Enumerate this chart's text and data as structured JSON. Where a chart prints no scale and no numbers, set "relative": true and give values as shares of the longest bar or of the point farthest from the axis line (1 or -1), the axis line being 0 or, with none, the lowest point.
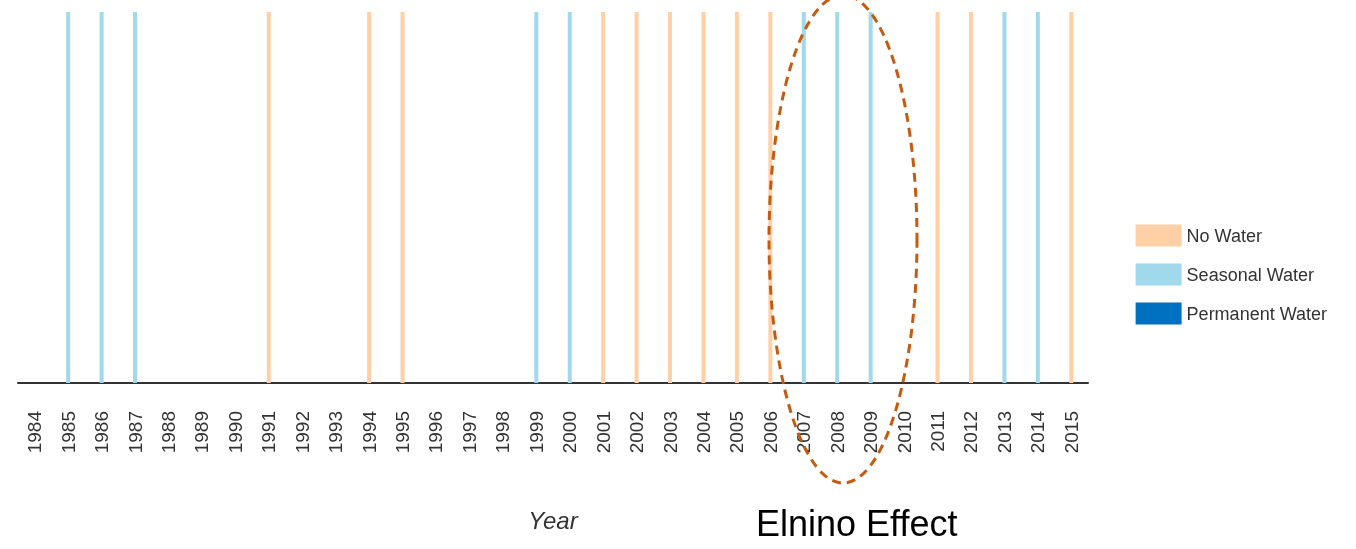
{
  "chart_data": {
    "type": "bar",
    "stacked": true,
    "relative": true,
    "xlabel": "Year",
    "legend": "right",
    "grid": false,
    "categories": [
      "1984",
      "1985",
      "1986",
      "1987",
      "1988",
      "1989",
      "1990",
      "1991",
      "1992",
      "1993",
      "1994",
      "1995",
      "1996",
      "1997",
      "1998",
      "1999",
      "2000",
      "2001",
      "2002",
      "2003",
      "2004",
      "2005",
      "2006",
      "2007",
      "2008",
      "2009",
      "2010",
      "2011",
      "2012",
      "2013",
      "2014",
      "2015"
    ],
    "series": [
      {
        "name": "No Water",
        "color": "#ffd0a6",
        "values": [
          null,
          null,
          null,
          null,
          null,
          null,
          null,
          1,
          null,
          null,
          1,
          1,
          null,
          null,
          null,
          null,
          null,
          1,
          1,
          1,
          1,
          1,
          1,
          null,
          null,
          null,
          null,
          1,
          1,
          null,
          null,
          1
        ]
      },
      {
        "name": "Seasonal Water",
        "color": "#a0d8ec",
        "values": [
          null,
          1,
          1,
          1,
          null,
          null,
          null,
          null,
          null,
          null,
          null,
          null,
          null,
          null,
          null,
          1,
          1,
          null,
          null,
          null,
          null,
          null,
          null,
          1,
          1,
          1,
          null,
          null,
          null,
          1,
          1,
          null
        ]
      },
      {
        "name": "Permanent Water",
        "color": "#0070c0",
        "values": [
          null,
          null,
          null,
          null,
          null,
          null,
          null,
          null,
          null,
          null,
          null,
          null,
          null,
          null,
          null,
          null,
          null,
          null,
          null,
          null,
          null,
          null,
          null,
          null,
          null,
          null,
          null,
          null,
          null,
          null,
          null,
          null
        ]
      }
    ],
    "annotations": [
      "Elnino Effect"
    ]
  }
}
